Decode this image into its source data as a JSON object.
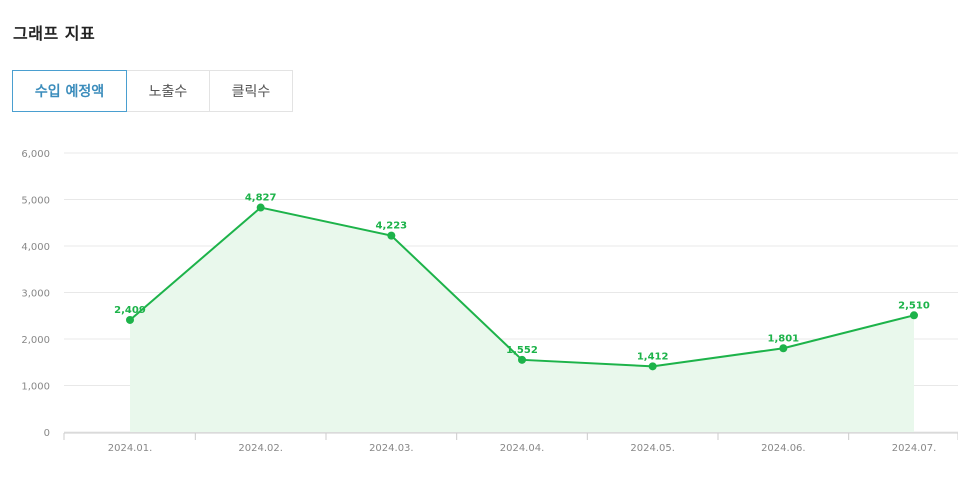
{
  "page": {
    "title": "그래프 지표"
  },
  "tabs": [
    {
      "label": "수입 예정액",
      "active": true
    },
    {
      "label": "노출수",
      "active": false
    },
    {
      "label": "클릭수",
      "active": false
    }
  ],
  "colors": {
    "line": "#1db34a",
    "fill": "#e9f8ec",
    "grid": "#e8e8e8",
    "active_tab": "#3c8dbc"
  },
  "chart_data": {
    "type": "line",
    "categories": [
      "2024.01.",
      "2024.02.",
      "2024.03.",
      "2024.04.",
      "2024.05.",
      "2024.06.",
      "2024.07."
    ],
    "series": [
      {
        "values": [
          2409,
          4827,
          4223,
          1552,
          1412,
          1801,
          2510
        ],
        "labels": [
          "2,409",
          "4,827",
          "4,223",
          "1,552",
          "1,412",
          "1,801",
          "2,510"
        ]
      }
    ],
    "ylim": [
      0,
      6000
    ],
    "yticks": [
      0,
      1000,
      2000,
      3000,
      4000,
      5000,
      6000
    ],
    "ytick_labels": [
      "0",
      "1,000",
      "2,000",
      "3,000",
      "4,000",
      "5,000",
      "6,000"
    ],
    "grid": true,
    "area_fill": true,
    "legend": "none"
  }
}
